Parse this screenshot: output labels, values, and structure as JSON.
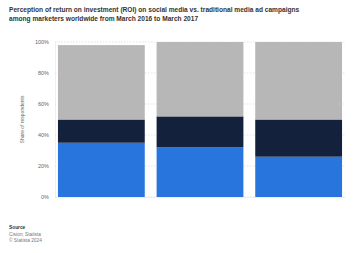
{
  "chart_data": {
    "type": "bar",
    "title": "Perception of return on investment (ROI) on social media vs. traditional media ad campaigns among marketers worldwide from March 2016 to March 2017",
    "y_label": "Share of respondents",
    "source": [
      "Source",
      "Cision; Statista",
      "© Statista 2024"
    ],
    "stacked": true,
    "grid": true,
    "categories": [
      null,
      null,
      null
    ],
    "series": [
      {
        "color": "#2876dd",
        "values": [
          35,
          32,
          26
        ]
      },
      {
        "color": "#14213d",
        "values": [
          15,
          20,
          24
        ]
      },
      {
        "color": "#b7b7b7",
        "values": [
          48,
          48,
          50
        ]
      }
    ],
    "ylim": [
      0,
      100
    ],
    "yticks": [
      {
        "value": 0,
        "label": "0%"
      },
      {
        "value": 20,
        "label": "20%"
      },
      {
        "value": 40,
        "label": "40%"
      },
      {
        "value": 60,
        "label": "60%"
      },
      {
        "value": 80,
        "label": "80%"
      },
      {
        "value": 100,
        "label": "100%"
      }
    ]
  }
}
